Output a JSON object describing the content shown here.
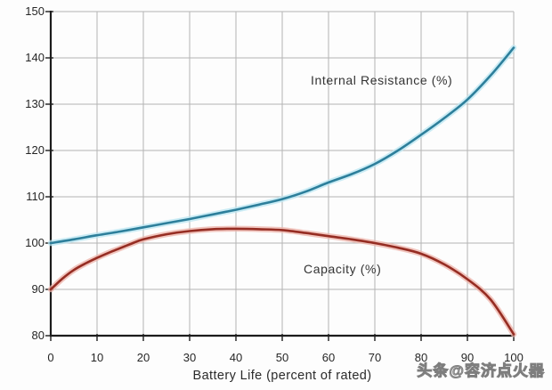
{
  "watermark": {
    "text": "头条@容济点火器"
  },
  "chart_data": {
    "type": "line",
    "xlabel": "Battery Life (percent of rated)",
    "xlim": [
      0,
      100
    ],
    "ylim": [
      80,
      150
    ],
    "x_ticks": [
      0,
      10,
      20,
      30,
      40,
      50,
      60,
      70,
      80,
      90,
      100
    ],
    "y_ticks": [
      80,
      90,
      100,
      110,
      120,
      130,
      140,
      150
    ],
    "grid": true,
    "legend": "inline-labels",
    "colors": {
      "grid": "#b3b3b3",
      "axis": "#1c1c1c",
      "tick_text": "#262626",
      "label_text": "#333333"
    },
    "series": [
      {
        "name": "Internal Resistance",
        "label": "Internal Resistance (%)",
        "color": "#2d7f9b",
        "halo_color": "#b9e6f2",
        "points": [
          [
            0,
            100
          ],
          [
            5,
            100.8
          ],
          [
            10,
            101.7
          ],
          [
            15,
            102.5
          ],
          [
            20,
            103.4
          ],
          [
            25,
            104.3
          ],
          [
            30,
            105.2
          ],
          [
            35,
            106.2
          ],
          [
            40,
            107.2
          ],
          [
            45,
            108.3
          ],
          [
            50,
            109.5
          ],
          [
            55,
            111.1
          ],
          [
            60,
            113.1
          ],
          [
            65,
            114.9
          ],
          [
            70,
            117.1
          ],
          [
            75,
            120.0
          ],
          [
            80,
            123.4
          ],
          [
            85,
            127.0
          ],
          [
            90,
            131.0
          ],
          [
            95,
            136.2
          ],
          [
            100,
            142.2
          ]
        ]
      },
      {
        "name": "Capacity",
        "label": "Capacity (%)",
        "color": "#962d23",
        "halo_color": "#ecb2a8",
        "points": [
          [
            0,
            90
          ],
          [
            2.5,
            92.3
          ],
          [
            5,
            94.2
          ],
          [
            7.5,
            95.6
          ],
          [
            10,
            96.8
          ],
          [
            12.5,
            97.9
          ],
          [
            15,
            98.9
          ],
          [
            17.5,
            99.9
          ],
          [
            20,
            100.8
          ],
          [
            25,
            101.9
          ],
          [
            30,
            102.6
          ],
          [
            35,
            103.0
          ],
          [
            40,
            103.1
          ],
          [
            45,
            103.0
          ],
          [
            50,
            102.8
          ],
          [
            55,
            102.2
          ],
          [
            60,
            101.5
          ],
          [
            65,
            100.8
          ],
          [
            70,
            100.0
          ],
          [
            75,
            99.0
          ],
          [
            80,
            97.7
          ],
          [
            85,
            95.4
          ],
          [
            90,
            92.2
          ],
          [
            95,
            87.8
          ],
          [
            100,
            80.3
          ]
        ]
      }
    ]
  }
}
